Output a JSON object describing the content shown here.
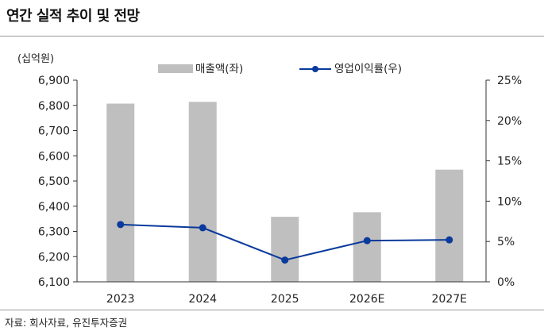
{
  "title": "연간 실적 추이 및 전망",
  "source": "자료: 회사자료, 유진투자증권",
  "chart_data": {
    "type": "bar",
    "unit_label": "(십억원)",
    "categories": [
      "2023",
      "2024",
      "2025",
      "2026E",
      "2027E"
    ],
    "series": [
      {
        "name": "매출액(좌)",
        "type": "bar",
        "axis": "left",
        "color": "#bfbfbf",
        "values": [
          6807,
          6814,
          6358,
          6376,
          6545
        ]
      },
      {
        "name": "영업이익률(우)",
        "type": "line",
        "axis": "right",
        "color": "#0a3a9c",
        "values": [
          7.1,
          6.7,
          2.7,
          5.1,
          5.2
        ]
      }
    ],
    "y_left": {
      "min": 6100,
      "max": 6900,
      "step": 100,
      "ticks": [
        "6,100",
        "6,200",
        "6,300",
        "6,400",
        "6,500",
        "6,600",
        "6,700",
        "6,800",
        "6,900"
      ]
    },
    "y_right": {
      "min": 0,
      "max": 25,
      "step": 5,
      "ticks": [
        "0%",
        "5%",
        "10%",
        "15%",
        "20%",
        "25%"
      ]
    },
    "legend_position": "top-center",
    "grid": false
  }
}
